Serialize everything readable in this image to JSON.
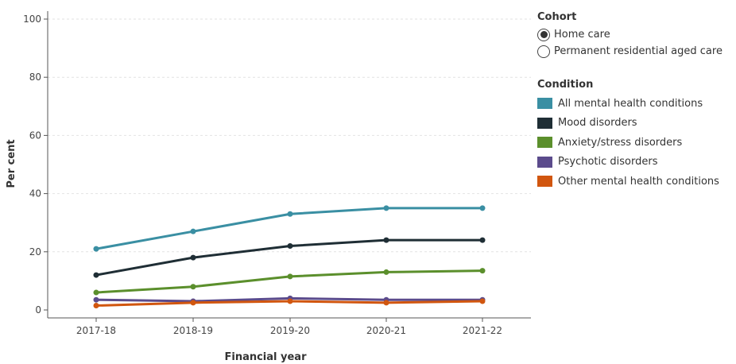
{
  "legend": {
    "cohort_title": "Cohort",
    "cohort_options": [
      {
        "label": "Home care",
        "selected": true
      },
      {
        "label": "Permanent residential aged care",
        "selected": false
      }
    ],
    "condition_title": "Condition"
  },
  "chart_data": {
    "type": "line",
    "title": "",
    "xlabel": "Financial year",
    "ylabel": "Per cent",
    "categories": [
      "2017-18",
      "2018-19",
      "2019-20",
      "2020-21",
      "2021-22"
    ],
    "ylim": [
      0,
      100
    ],
    "yticks": [
      0,
      20,
      40,
      60,
      80,
      100
    ],
    "grid": "horizontal dashed",
    "legend_placement": "right",
    "series": [
      {
        "name": "All mental health conditions",
        "color": "#3a8fa3",
        "values": [
          21,
          27,
          33,
          35,
          35
        ]
      },
      {
        "name": "Mood disorders",
        "color": "#1f2e35",
        "values": [
          12,
          18,
          22,
          24,
          24
        ]
      },
      {
        "name": "Anxiety/stress disorders",
        "color": "#5b8f2c",
        "values": [
          6,
          8,
          11.5,
          13,
          13.5
        ]
      },
      {
        "name": "Psychotic disorders",
        "color": "#5b4b8c",
        "values": [
          3.5,
          3,
          4,
          3.5,
          3.5
        ]
      },
      {
        "name": "Other mental health conditions",
        "color": "#d1560f",
        "values": [
          1.5,
          2.5,
          3,
          2.5,
          3
        ]
      }
    ]
  }
}
